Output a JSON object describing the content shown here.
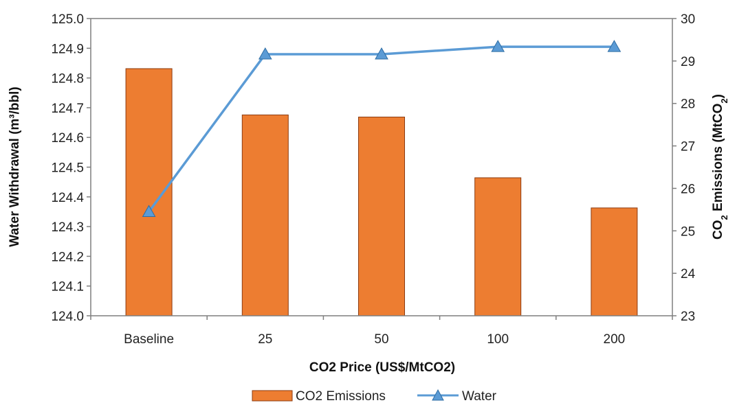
{
  "chart_data": {
    "type": "bar",
    "categories": [
      "Baseline",
      "25",
      "50",
      "100",
      "200"
    ],
    "series": [
      {
        "name": "CO2 Emissions",
        "type": "bar",
        "axis": "right",
        "values": [
          28.82,
          27.73,
          27.68,
          26.25,
          25.54
        ],
        "color": "#ED7D31"
      },
      {
        "name": "Water",
        "type": "line",
        "axis": "left",
        "values": [
          124.35,
          124.88,
          124.88,
          124.905,
          124.905
        ],
        "color": "#5B9BD5"
      }
    ],
    "xlabel": "CO2 Price (US$/MtCO2)",
    "ylabel": "Water Withdrawal (m³/bbl)",
    "y2label_main": "CO",
    "y2label_sub1": "2",
    "y2label_mid": " Emissions (MtCO",
    "y2label_sub2": "2",
    "y2label_end": ")",
    "ylim": [
      124.0,
      125.0
    ],
    "y_ticks": [
      "124.0",
      "124.1",
      "124.2",
      "124.3",
      "124.4",
      "124.5",
      "124.6",
      "124.7",
      "124.8",
      "124.9",
      "125.0"
    ],
    "y2lim": [
      23,
      30
    ],
    "y2_ticks": [
      "23",
      "24",
      "25",
      "26",
      "27",
      "28",
      "29",
      "30"
    ],
    "grid": false,
    "legend": "bottom",
    "legend_entries": [
      "CO2 Emissions",
      "Water"
    ]
  }
}
